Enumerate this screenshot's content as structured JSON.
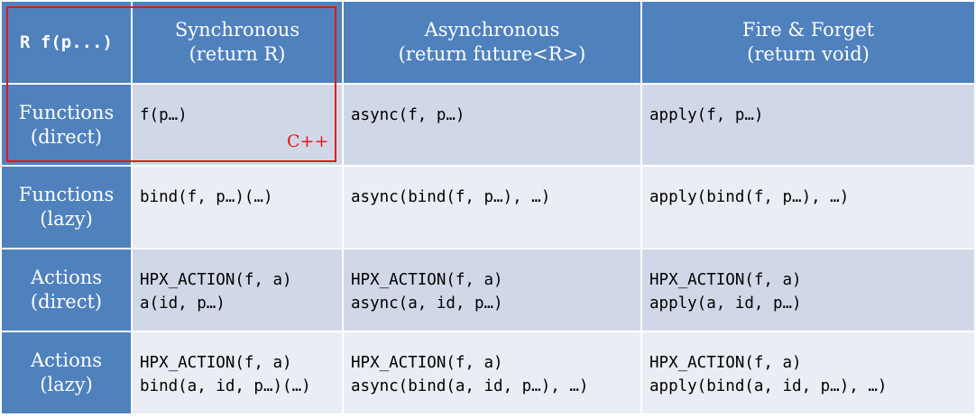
{
  "corner_label": "R f(p...)",
  "columns": [
    {
      "title": "Synchronous",
      "subtitle": "(return R)"
    },
    {
      "title": "Asynchronous",
      "subtitle": "(return future<R>)"
    },
    {
      "title": "Fire & Forget",
      "subtitle": "(return void)"
    }
  ],
  "rows": [
    {
      "title": "Functions",
      "subtitle": "(direct)",
      "cells": [
        {
          "line1": "f(p…)",
          "line2": ""
        },
        {
          "line1": "async(f, p…)",
          "line2": ""
        },
        {
          "line1": "apply(f, p…)",
          "line2": ""
        }
      ]
    },
    {
      "title": "Functions",
      "subtitle": "(lazy)",
      "cells": [
        {
          "line1": "bind(f, p…)(…)",
          "line2": ""
        },
        {
          "line1": "async(bind(f, p…), …)",
          "line2": ""
        },
        {
          "line1": "apply(bind(f, p…), …)",
          "line2": ""
        }
      ]
    },
    {
      "title": "Actions",
      "subtitle": "(direct)",
      "cells": [
        {
          "line1": "HPX_ACTION(f, a)",
          "line2": "a(id, p…)"
        },
        {
          "line1": "HPX_ACTION(f, a)",
          "line2": "async(a, id, p…)"
        },
        {
          "line1": "HPX_ACTION(f, a)",
          "line2": "apply(a, id, p…)"
        }
      ]
    },
    {
      "title": "Actions",
      "subtitle": "(lazy)",
      "cells": [
        {
          "line1": "HPX_ACTION(f, a)",
          "line2": "bind(a, id, p…)(…)"
        },
        {
          "line1": "HPX_ACTION(f, a)",
          "line2": "async(bind(a, id, p…), …)"
        },
        {
          "line1": "HPX_ACTION(f, a)",
          "line2": "apply(bind(a, id, p…), …)"
        }
      ]
    }
  ],
  "highlight": {
    "label": "C++",
    "color": "#e8141b"
  },
  "colors": {
    "header": "#4f81bd",
    "row_dark": "#d0d8e8",
    "row_light": "#e9edf4"
  }
}
